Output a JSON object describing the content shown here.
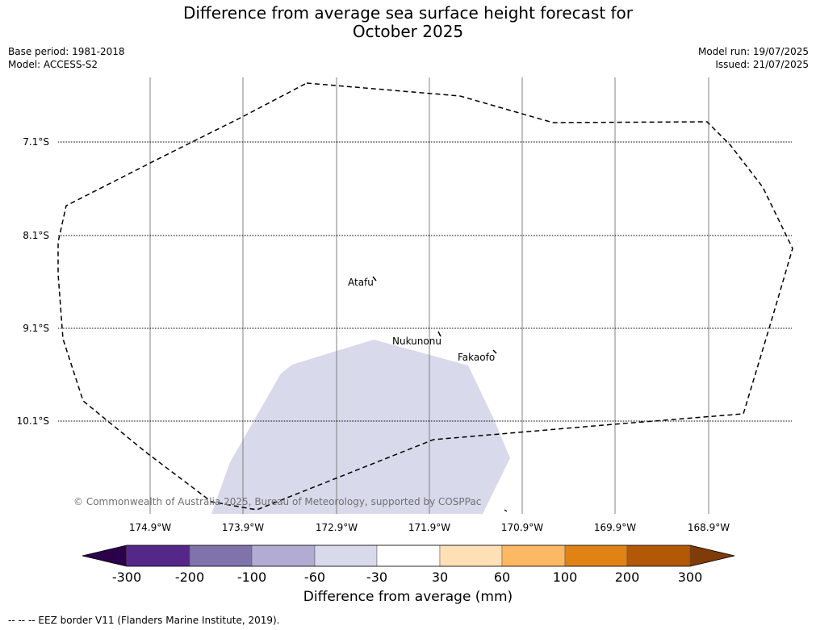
{
  "title_line1": "Difference from average sea surface height forecast for",
  "title_line2": "October 2025",
  "meta_left": {
    "base_period": "Base period: 1981-2018",
    "model": "Model: ACCESS-S2"
  },
  "meta_right": {
    "model_run": "Model run: 19/07/2025",
    "issued": "Issued: 21/07/2025"
  },
  "map": {
    "lon_ticks": [
      "174.9°W",
      "173.9°W",
      "172.9°W",
      "171.9°W",
      "170.9°W",
      "169.9°W",
      "168.9°W"
    ],
    "lat_ticks": [
      "7.1°S",
      "8.1°S",
      "9.1°S",
      "10.1°S"
    ],
    "places": [
      {
        "name": "Atafu"
      },
      {
        "name": "Nukunonu"
      },
      {
        "name": "Fakaofo"
      }
    ],
    "anomaly_fill_color": "#d8d9ea",
    "copyright": "© Commonwealth of Australia 2025, Bureau of Meteorology, supported by COSPPac"
  },
  "colorbar": {
    "label": "Difference from average (mm)",
    "ticks": [
      "-300",
      "-200",
      "-100",
      "-60",
      "-30",
      "30",
      "60",
      "100",
      "200",
      "300"
    ],
    "colors": [
      "#2d004b",
      "#542788",
      "#8073ac",
      "#b2abd2",
      "#d8daeb",
      "#ffffff",
      "#fee0b6",
      "#fdb863",
      "#e08214",
      "#b35806",
      "#7f3b08"
    ]
  },
  "footer": "--  --  -- EEZ border V11 (Flanders Marine Institute, 2019)."
}
